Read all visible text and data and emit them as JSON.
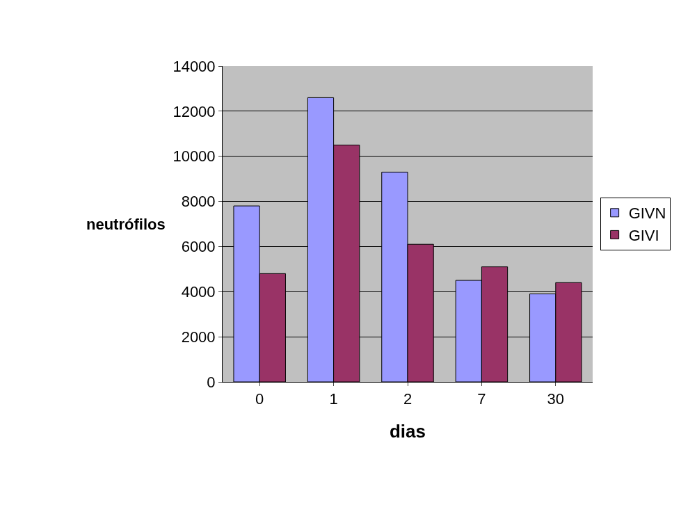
{
  "chart_data": {
    "type": "bar",
    "xlabel": "dias",
    "ylabel": "neutrófilos",
    "categories": [
      "0",
      "1",
      "2",
      "7",
      "30"
    ],
    "series": [
      {
        "name": "GIVN",
        "color": "#9999ff",
        "values": [
          7800,
          12600,
          9300,
          4500,
          3900
        ]
      },
      {
        "name": "GIVI",
        "color": "#993366",
        "values": [
          4800,
          10500,
          6100,
          5100,
          4400
        ]
      }
    ],
    "ylim": [
      0,
      14000
    ],
    "yticks": [
      0,
      2000,
      4000,
      6000,
      8000,
      10000,
      12000,
      14000
    ],
    "grid": "y",
    "legend": "right"
  }
}
